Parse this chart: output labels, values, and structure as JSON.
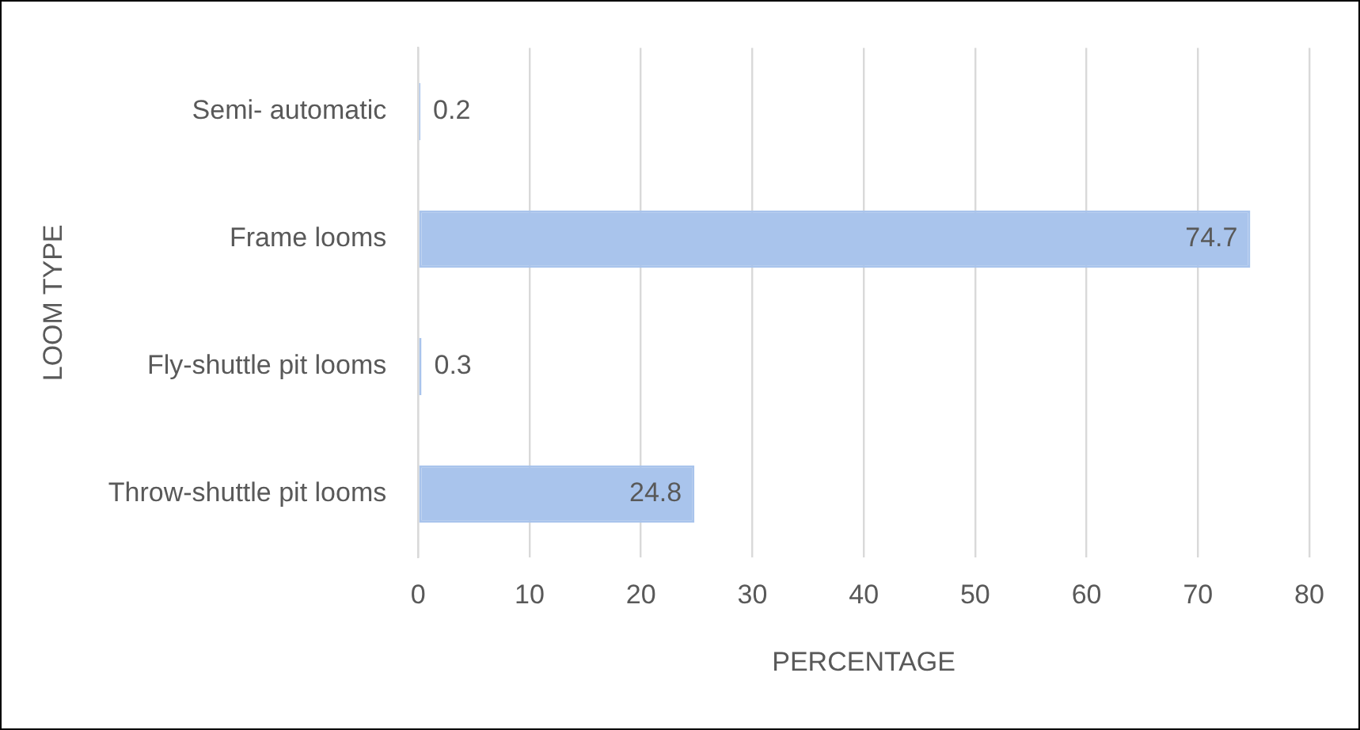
{
  "chart_data": {
    "type": "bar",
    "orientation": "horizontal",
    "xlabel": "PERCENTAGE",
    "ylabel": "LOOM TYPE",
    "categories": [
      "Semi- automatic",
      "Frame looms",
      "Fly-shuttle pit looms",
      "Throw-shuttle pit looms"
    ],
    "values": [
      0.2,
      74.7,
      0.3,
      24.8
    ],
    "color": "#a9c4ec",
    "xlim": [
      0,
      80
    ],
    "xticks": [
      0,
      10,
      20,
      30,
      40,
      50,
      60,
      70,
      80
    ],
    "grid": "x",
    "data_labels": true,
    "legend": false
  }
}
